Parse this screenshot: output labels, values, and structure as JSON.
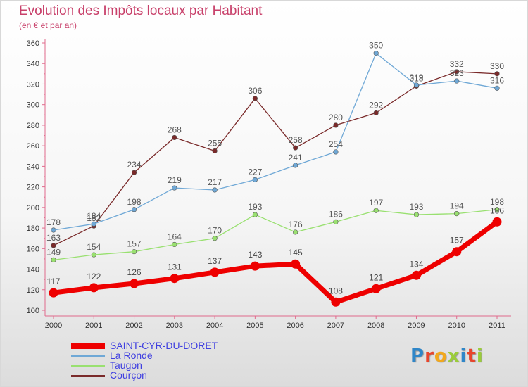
{
  "header": {
    "title": "Evolution des Impôts locaux par Habitant",
    "subtitle": "(en € et par an)"
  },
  "logo": {
    "text": "Proxiti"
  },
  "chart_data": {
    "type": "line",
    "title": "Evolution des Impôts locaux par Habitant",
    "subtitle": "(en € et par an)",
    "xlabel": "",
    "ylabel": "",
    "ylim": [
      100,
      360
    ],
    "yticks": [
      100,
      120,
      140,
      160,
      180,
      200,
      220,
      240,
      260,
      280,
      300,
      320,
      340,
      360
    ],
    "grid": false,
    "legend_position": "bottom-left",
    "x": [
      "2000",
      "2001",
      "2002",
      "2003",
      "2004",
      "2005",
      "2006",
      "2007",
      "2008",
      "2009",
      "2010",
      "2011"
    ],
    "series": [
      {
        "name": "SAINT-CYR-DU-DORET",
        "color": "#ee0000",
        "values": [
          117,
          122,
          126,
          131,
          137,
          143,
          145,
          108,
          121,
          134,
          157,
          186
        ]
      },
      {
        "name": "La Ronde",
        "color": "#6fa8d6",
        "values": [
          178,
          184,
          198,
          219,
          217,
          227,
          241,
          254,
          350,
          319,
          323,
          316
        ]
      },
      {
        "name": "Taugon",
        "color": "#99e070",
        "values": [
          149,
          154,
          157,
          164,
          170,
          193,
          176,
          186,
          197,
          193,
          194,
          198
        ]
      },
      {
        "name": "Courçon",
        "color": "#7a2a2a",
        "values": [
          163,
          182,
          234,
          268,
          255,
          306,
          258,
          280,
          292,
          318,
          332,
          330
        ]
      }
    ]
  }
}
